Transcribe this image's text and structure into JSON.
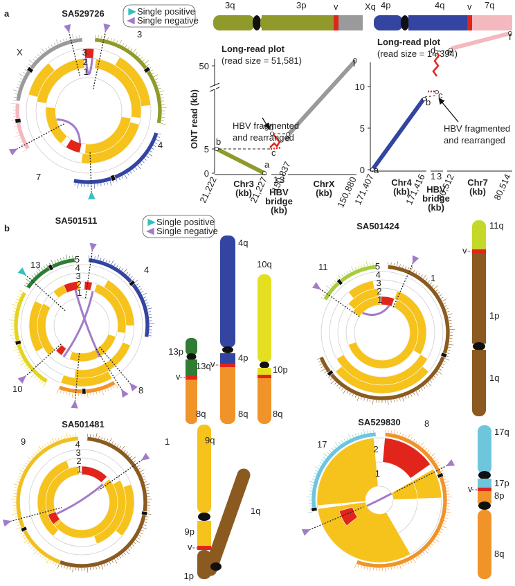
{
  "panel_a": {
    "label": "a",
    "sample": "SA529726",
    "legend": [
      "Single positive",
      "Single negative"
    ],
    "chromosomes": [
      "X",
      "3",
      "4",
      "7"
    ],
    "ring_labels": [
      "1",
      "2",
      "3"
    ],
    "ideogram_left": {
      "arms": [
        "3q",
        "3p",
        "Xq"
      ],
      "breakpoint": "v"
    },
    "ideogram_right": {
      "arms": [
        "4p",
        "4q",
        "7q"
      ],
      "breakpoint": "v"
    },
    "plot_left": {
      "title": "Long-read plot",
      "subtitle": "(read size = 51,581)",
      "y_label": "ONT read (kb)",
      "y_ticks": [
        0,
        5,
        50
      ],
      "annotation": [
        "HBV fragmented",
        "and rearranged"
      ],
      "points": [
        "a",
        "b",
        "c",
        "d",
        "e",
        "f"
      ],
      "x_ticks": [
        "21,222",
        "21,227",
        "150,837",
        "150,880"
      ],
      "bridge_ticks": [
        "1",
        "3"
      ],
      "x_groups": [
        [
          "Chr3",
          "(kb)"
        ],
        [
          "HBV",
          "bridge",
          "(kb)"
        ],
        [
          "ChrX",
          "(kb)"
        ]
      ]
    },
    "plot_right": {
      "title": "Long-read plot",
      "subtitle": "(read size = 14,394)",
      "y_ticks": [
        0,
        5,
        10
      ],
      "annotation": [
        "HBV fragmented",
        "and rearranged"
      ],
      "points": [
        "a",
        "b",
        "c",
        "d",
        "e",
        "f"
      ],
      "x_ticks": [
        "171,407",
        "171,416",
        "80,512",
        "80,514"
      ],
      "bridge_ticks": [
        "1",
        "3"
      ],
      "x_groups": [
        [
          "Chr4",
          "(kb)"
        ],
        [
          "HBV",
          "bridge",
          "(kb)"
        ],
        [
          "Chr7",
          "(kb)"
        ]
      ]
    }
  },
  "panel_b": {
    "label": "b",
    "legend": [
      "Single positive",
      "Single negative"
    ],
    "cases": [
      {
        "sample": "SA501511",
        "chromosomes": [
          "13",
          "4",
          "10",
          "8"
        ],
        "ring_labels": [
          "1",
          "2",
          "3",
          "4",
          "5"
        ],
        "ideograms": [
          [
            "13p",
            "13q",
            "8q"
          ],
          [
            "4q",
            "4p",
            "8q"
          ],
          [
            "10q",
            "10p",
            "8q"
          ]
        ],
        "breakpoint": "v"
      },
      {
        "sample": "SA501424",
        "chromosomes": [
          "11",
          "1"
        ],
        "ring_labels": [
          "1",
          "2",
          "3",
          "4",
          "5"
        ],
        "ideograms": [
          [
            "11q",
            "1p",
            "1q"
          ]
        ],
        "breakpoint": "v"
      },
      {
        "sample": "SA501481",
        "chromosomes": [
          "9",
          "1"
        ],
        "ring_labels": [
          "1",
          "2",
          "3",
          "4"
        ],
        "ideograms": [
          [
            "9q",
            "9p",
            "1p",
            "1q"
          ]
        ],
        "breakpoint": "v"
      },
      {
        "sample": "SA529830",
        "chromosomes": [
          "17",
          "8"
        ],
        "ring_labels": [
          "1",
          "2"
        ],
        "ideograms": [
          [
            "17q",
            "17p",
            "8p",
            "8q"
          ]
        ],
        "breakpoint": "v"
      }
    ]
  }
}
